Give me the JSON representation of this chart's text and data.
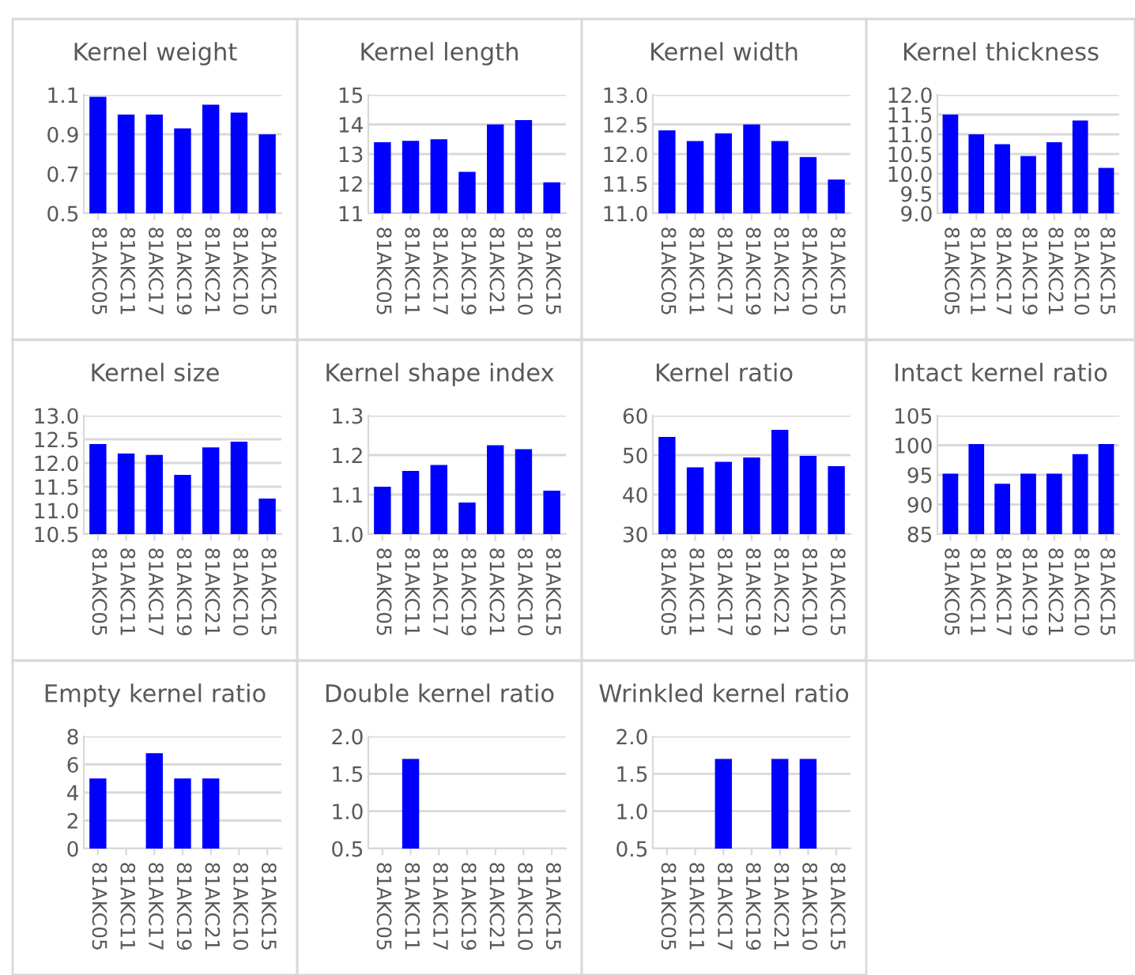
{
  "chart_data": [
    {
      "type": "bar",
      "title": "Kernel weight",
      "categories": [
        "81AKC05",
        "81AKC11",
        "81AKC17",
        "81AKC19",
        "81AKC21",
        "81AKC10",
        "81AKC15"
      ],
      "values": [
        1.09,
        1.0,
        1.0,
        0.93,
        1.05,
        1.01,
        0.9
      ],
      "color": "#0000ff",
      "ylim": [
        0.5,
        1.1
      ],
      "yticks": [
        {
          "value": 0.5,
          "label": "0.5"
        },
        {
          "value": 0.7,
          "label": "0.7"
        },
        {
          "value": 0.9,
          "label": "0.9"
        },
        {
          "value": 1.1,
          "label": "1.1"
        }
      ],
      "grid": "y"
    },
    {
      "type": "bar",
      "title": "Kernel length",
      "categories": [
        "81AKC05",
        "81AKC11",
        "81AKC17",
        "81AKC19",
        "81AKC21",
        "81AKC10",
        "81AKC15"
      ],
      "values": [
        13.4,
        13.45,
        13.5,
        12.4,
        14.0,
        14.15,
        12.05
      ],
      "color": "#0000ff",
      "ylim": [
        11,
        15
      ],
      "yticks": [
        11,
        12,
        13,
        14,
        15
      ],
      "grid": "y"
    },
    {
      "type": "bar",
      "title": "Kernel width",
      "categories": [
        "81AKC05",
        "81AKC11",
        "81AKC17",
        "81AKC19",
        "81AKC21",
        "81AKC10",
        "81AKC15"
      ],
      "values": [
        12.4,
        12.22,
        12.35,
        12.5,
        12.22,
        11.95,
        11.57
      ],
      "color": "#0000ff",
      "ylim": [
        11.0,
        13.0
      ],
      "yticks": [
        {
          "value": 11,
          "label": "11.0"
        },
        {
          "value": 11.5,
          "label": "11.5"
        },
        {
          "value": 12,
          "label": "12.0"
        },
        {
          "value": 12.5,
          "label": "12.5"
        },
        {
          "value": 13,
          "label": "13.0"
        }
      ],
      "grid": "y"
    },
    {
      "type": "bar",
      "title": "Kernel thickness",
      "categories": [
        "81AKC05",
        "81AKC11",
        "81AKC17",
        "81AKC19",
        "81AKC21",
        "81AKC10",
        "81AKC15"
      ],
      "values": [
        11.5,
        11.0,
        10.75,
        10.45,
        10.8,
        11.35,
        10.15
      ],
      "color": "#0000ff",
      "ylim": [
        9.0,
        12.0
      ],
      "yticks": [
        {
          "value": 9,
          "label": "9.0"
        },
        {
          "value": 9.5,
          "label": "9.5"
        },
        {
          "value": 10,
          "label": "10.0"
        },
        {
          "value": 10.5,
          "label": "10.5"
        },
        {
          "value": 11,
          "label": "11.0"
        },
        {
          "value": 11.5,
          "label": "11.5"
        },
        {
          "value": 12,
          "label": "12.0"
        }
      ],
      "grid": "y"
    },
    {
      "type": "bar",
      "title": "Kernel size",
      "categories": [
        "81AKC05",
        "81AKC11",
        "81AKC17",
        "81AKC19",
        "81AKC21",
        "81AKC10",
        "81AKC15"
      ],
      "values": [
        12.4,
        12.2,
        12.17,
        11.75,
        12.33,
        12.45,
        11.25
      ],
      "color": "#0000ff",
      "ylim": [
        10.5,
        13.0
      ],
      "yticks": [
        10.5,
        {
          "value": 11,
          "label": "11.0"
        },
        11.5,
        {
          "value": 12,
          "label": "12.0"
        },
        12.5,
        {
          "value": 13,
          "label": "13.0"
        }
      ],
      "grid": "y"
    },
    {
      "type": "bar",
      "title": "Kernel shape index",
      "categories": [
        "81AKC05",
        "81AKC11",
        "81AKC17",
        "81AKC19",
        "81AKC21",
        "81AKC10",
        "81AKC15"
      ],
      "values": [
        1.12,
        1.16,
        1.175,
        1.08,
        1.225,
        1.215,
        1.11
      ],
      "color": "#0000ff",
      "ylim": [
        1.0,
        1.3
      ],
      "yticks": [
        {
          "value": 1.0,
          "label": "1.0"
        },
        1.1,
        1.2,
        1.3
      ],
      "grid": "y"
    },
    {
      "type": "bar",
      "title": "Kernel ratio",
      "categories": [
        "81AKC05",
        "81AKC11",
        "81AKC17",
        "81AKC19",
        "81AKC21",
        "81AKC10",
        "81AKC15"
      ],
      "values": [
        54.6,
        46.9,
        48.3,
        49.4,
        56.4,
        49.8,
        47.2
      ],
      "color": "#0000ff",
      "ylim": [
        30,
        60
      ],
      "yticks": [
        30,
        40,
        50,
        60
      ],
      "grid": "y"
    },
    {
      "type": "bar",
      "title": "Intact kernel ratio",
      "categories": [
        "81AKC05",
        "81AKC11",
        "81AKC17",
        "81AKC19",
        "81AKC21",
        "81AKC10",
        "81AKC15"
      ],
      "values": [
        95.2,
        100.2,
        93.5,
        95.2,
        95.2,
        98.5,
        100.2
      ],
      "color": "#0000ff",
      "ylim": [
        85,
        105
      ],
      "yticks": [
        85,
        90,
        95,
        100,
        105
      ],
      "grid": "y"
    },
    {
      "type": "bar",
      "title": "Empty kernel ratio",
      "categories": [
        "81AKC05",
        "81AKC11",
        "81AKC17",
        "81AKC19",
        "81AKC21",
        "81AKC10",
        "81AKC15"
      ],
      "values": [
        5.0,
        null,
        6.8,
        5.0,
        5.0,
        null,
        null
      ],
      "color": "#0000ff",
      "ylim": [
        0,
        8
      ],
      "yticks": [
        0,
        2,
        4,
        6,
        8
      ],
      "grid": "y"
    },
    {
      "type": "bar",
      "title": "Double kernel ratio",
      "categories": [
        "81AKC05",
        "81AKC11",
        "81AKC17",
        "81AKC19",
        "81AKC21",
        "81AKC10",
        "81AKC15"
      ],
      "values": [
        null,
        1.7,
        null,
        null,
        null,
        null,
        null
      ],
      "color": "#0000ff",
      "ylim": [
        0.5,
        2.0
      ],
      "yticks": [
        0.5,
        {
          "value": 1,
          "label": "1.0"
        },
        1.5,
        {
          "value": 2,
          "label": "2.0"
        }
      ],
      "grid": "y"
    },
    {
      "type": "bar",
      "title": "Wrinkled kernel ratio",
      "categories": [
        "81AKC05",
        "81AKC11",
        "81AKC17",
        "81AKC19",
        "81AKC21",
        "81AKC10",
        "81AKC15"
      ],
      "values": [
        null,
        null,
        1.7,
        null,
        1.7,
        1.7,
        null
      ],
      "color": "#0000ff",
      "ylim": [
        0.5,
        2.0
      ],
      "yticks": [
        0.5,
        {
          "value": 1,
          "label": "1.0"
        },
        1.5,
        {
          "value": 2,
          "label": "2.0"
        }
      ],
      "grid": "y"
    }
  ]
}
